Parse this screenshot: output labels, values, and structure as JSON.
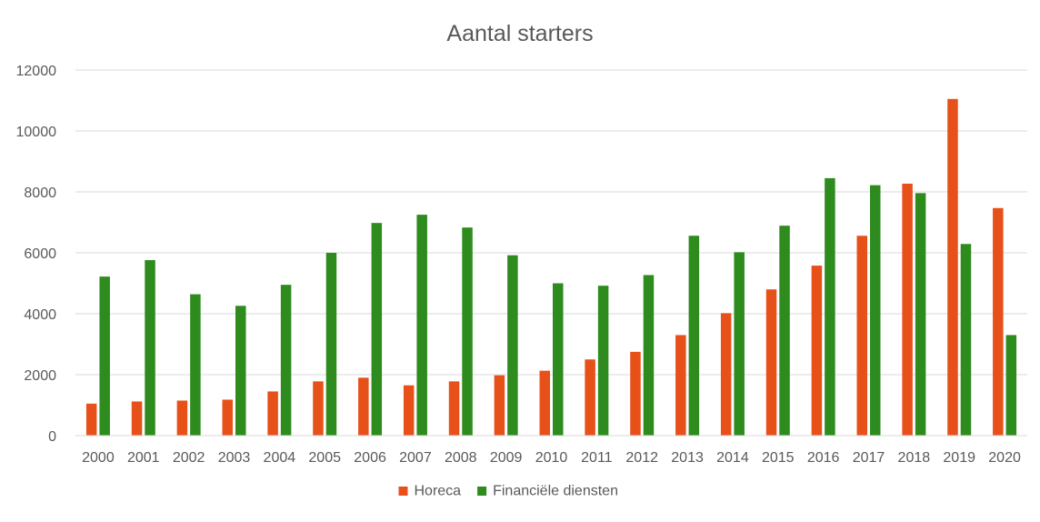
{
  "chart_data": {
    "type": "bar",
    "title": "Aantal starters",
    "xlabel": "",
    "ylabel": "",
    "ylim": [
      0,
      12000
    ],
    "yticks": [
      0,
      2000,
      4000,
      6000,
      8000,
      10000,
      12000
    ],
    "ytick_labels": [
      "0",
      "2000",
      "4000",
      "6000",
      "8000",
      "10000",
      "12000"
    ],
    "grid": true,
    "legend_position": "bottom",
    "categories": [
      "2000",
      "2001",
      "2002",
      "2003",
      "2004",
      "2005",
      "2006",
      "2007",
      "2008",
      "2009",
      "2010",
      "2011",
      "2012",
      "2013",
      "2014",
      "2015",
      "2016",
      "2017",
      "2018",
      "2019",
      "2020"
    ],
    "series": [
      {
        "name": "Horeca",
        "color": "#e8501a",
        "values": [
          1050,
          1120,
          1150,
          1180,
          1450,
          1780,
          1900,
          1650,
          1780,
          1980,
          2130,
          2500,
          2750,
          3300,
          4020,
          4800,
          5580,
          6560,
          8270,
          11050,
          7470
        ]
      },
      {
        "name": "Financiële diensten",
        "color": "#2e8b1e",
        "values": [
          5220,
          5760,
          4640,
          4260,
          4950,
          6000,
          6980,
          7250,
          6830,
          5920,
          5000,
          4920,
          5270,
          6560,
          6020,
          6890,
          8450,
          8220,
          7960,
          6290,
          3300
        ]
      }
    ]
  }
}
